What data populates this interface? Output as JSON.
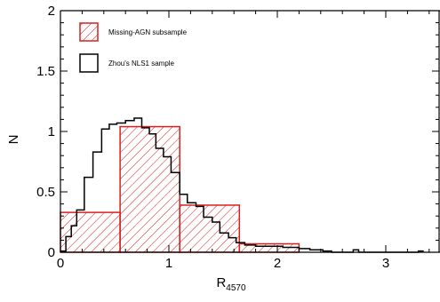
{
  "chart_data": {
    "type": "histogram",
    "xlabel": "R",
    "xlabel_subscript": "4570",
    "ylabel": "N",
    "xlim": [
      0,
      3.5
    ],
    "ylim": [
      0,
      2
    ],
    "x_ticks": [
      "0",
      "1",
      "2",
      "3"
    ],
    "y_ticks": [
      "0",
      "0.5",
      "1",
      "1.5",
      "2"
    ],
    "grid": false,
    "legend_position": "top-left",
    "series": [
      {
        "name": "Missing-AGN subsample",
        "style": "hatched",
        "color": "#d62020",
        "bins": [
          {
            "x0": 0.0,
            "x1": 0.55,
            "value": 0.33
          },
          {
            "x0": 0.55,
            "x1": 1.1,
            "value": 1.04
          },
          {
            "x0": 1.1,
            "x1": 1.65,
            "value": 0.39
          },
          {
            "x0": 1.65,
            "x1": 2.2,
            "value": 0.07
          }
        ]
      },
      {
        "name": "Zhou's NLS1 sample",
        "style": "step",
        "color": "#000000",
        "edges": [
          0.0,
          0.05,
          0.1,
          0.15,
          0.22,
          0.3,
          0.38,
          0.45,
          0.52,
          0.6,
          0.68,
          0.75,
          0.82,
          0.88,
          0.95,
          1.02,
          1.1,
          1.17,
          1.25,
          1.32,
          1.4,
          1.47,
          1.55,
          1.62,
          1.7,
          1.8,
          1.9,
          2.05,
          2.2,
          2.3,
          2.42,
          2.5,
          2.7,
          2.75,
          3.3,
          3.35
        ],
        "values": [
          0.01,
          0.13,
          0.22,
          0.35,
          0.62,
          0.83,
          1.02,
          1.06,
          1.07,
          1.09,
          1.11,
          1.03,
          0.98,
          0.86,
          0.79,
          0.66,
          0.48,
          0.41,
          0.38,
          0.29,
          0.25,
          0.16,
          0.12,
          0.08,
          0.06,
          0.05,
          0.05,
          0.04,
          0.03,
          0.02,
          0.01,
          0.0,
          0.02,
          0.0,
          0.01
        ]
      }
    ]
  }
}
